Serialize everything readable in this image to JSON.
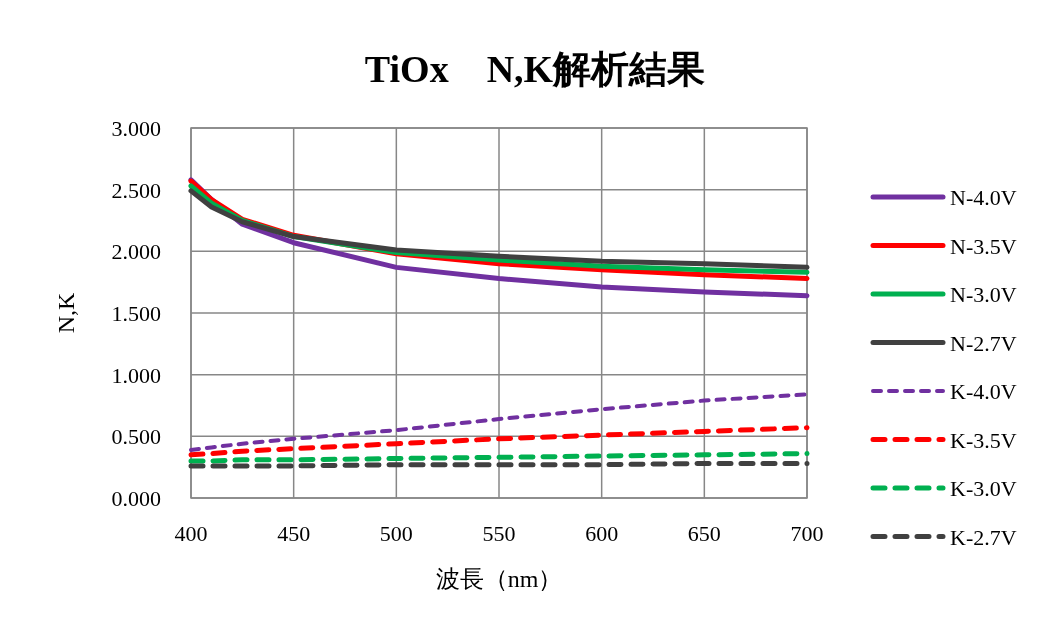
{
  "chart_data": {
    "type": "line",
    "title": "TiOx　N,K解析結果",
    "xlabel": "波長（nm）",
    "ylabel": "N,K",
    "x": [
      400,
      410,
      425,
      450,
      500,
      550,
      600,
      650,
      700
    ],
    "xlim": [
      400,
      700
    ],
    "xticks": [
      400,
      450,
      500,
      550,
      600,
      650,
      700
    ],
    "ylim": [
      0,
      3
    ],
    "yticks": [
      {
        "value": 0,
        "label": "0.000"
      },
      {
        "value": 0.5,
        "label": "0.500"
      },
      {
        "value": 1,
        "label": "1.000"
      },
      {
        "value": 1.5,
        "label": "1.500"
      },
      {
        "value": 2,
        "label": "2.000"
      },
      {
        "value": 2.5,
        "label": "2.500"
      },
      {
        "value": 3,
        "label": "3.000"
      }
    ],
    "grid": true,
    "legend": "right",
    "series": [
      {
        "name": "N-4.0V",
        "color": "#7030a0",
        "line_style": "solid",
        "values": [
          2.58,
          2.42,
          2.22,
          2.07,
          1.87,
          1.78,
          1.71,
          1.67,
          1.64
        ]
      },
      {
        "name": "N-3.5V",
        "color": "#ff0000",
        "line_style": "solid",
        "values": [
          2.57,
          2.42,
          2.26,
          2.13,
          1.98,
          1.9,
          1.85,
          1.81,
          1.78
        ]
      },
      {
        "name": "N-3.0V",
        "color": "#00b050",
        "line_style": "solid",
        "values": [
          2.53,
          2.39,
          2.25,
          2.12,
          1.99,
          1.93,
          1.88,
          1.85,
          1.83
        ]
      },
      {
        "name": "N-2.7V",
        "color": "#404040",
        "line_style": "solid",
        "values": [
          2.49,
          2.36,
          2.24,
          2.12,
          2.01,
          1.96,
          1.92,
          1.9,
          1.87
        ]
      },
      {
        "name": "K-4.0V",
        "color": "#7030a0",
        "line_style": "dotted",
        "values": [
          0.39,
          0.41,
          0.44,
          0.48,
          0.55,
          0.64,
          0.72,
          0.79,
          0.84
        ]
      },
      {
        "name": "K-3.5V",
        "color": "#ff0000",
        "line_style": "dashed",
        "values": [
          0.35,
          0.36,
          0.38,
          0.4,
          0.44,
          0.48,
          0.51,
          0.54,
          0.57
        ]
      },
      {
        "name": "K-3.0V",
        "color": "#00b050",
        "line_style": "dashed",
        "values": [
          0.3,
          0.3,
          0.31,
          0.31,
          0.32,
          0.33,
          0.34,
          0.35,
          0.36
        ]
      },
      {
        "name": "K-2.7V",
        "color": "#404040",
        "line_style": "dashed",
        "values": [
          0.26,
          0.26,
          0.26,
          0.26,
          0.27,
          0.27,
          0.27,
          0.28,
          0.28
        ]
      }
    ]
  }
}
